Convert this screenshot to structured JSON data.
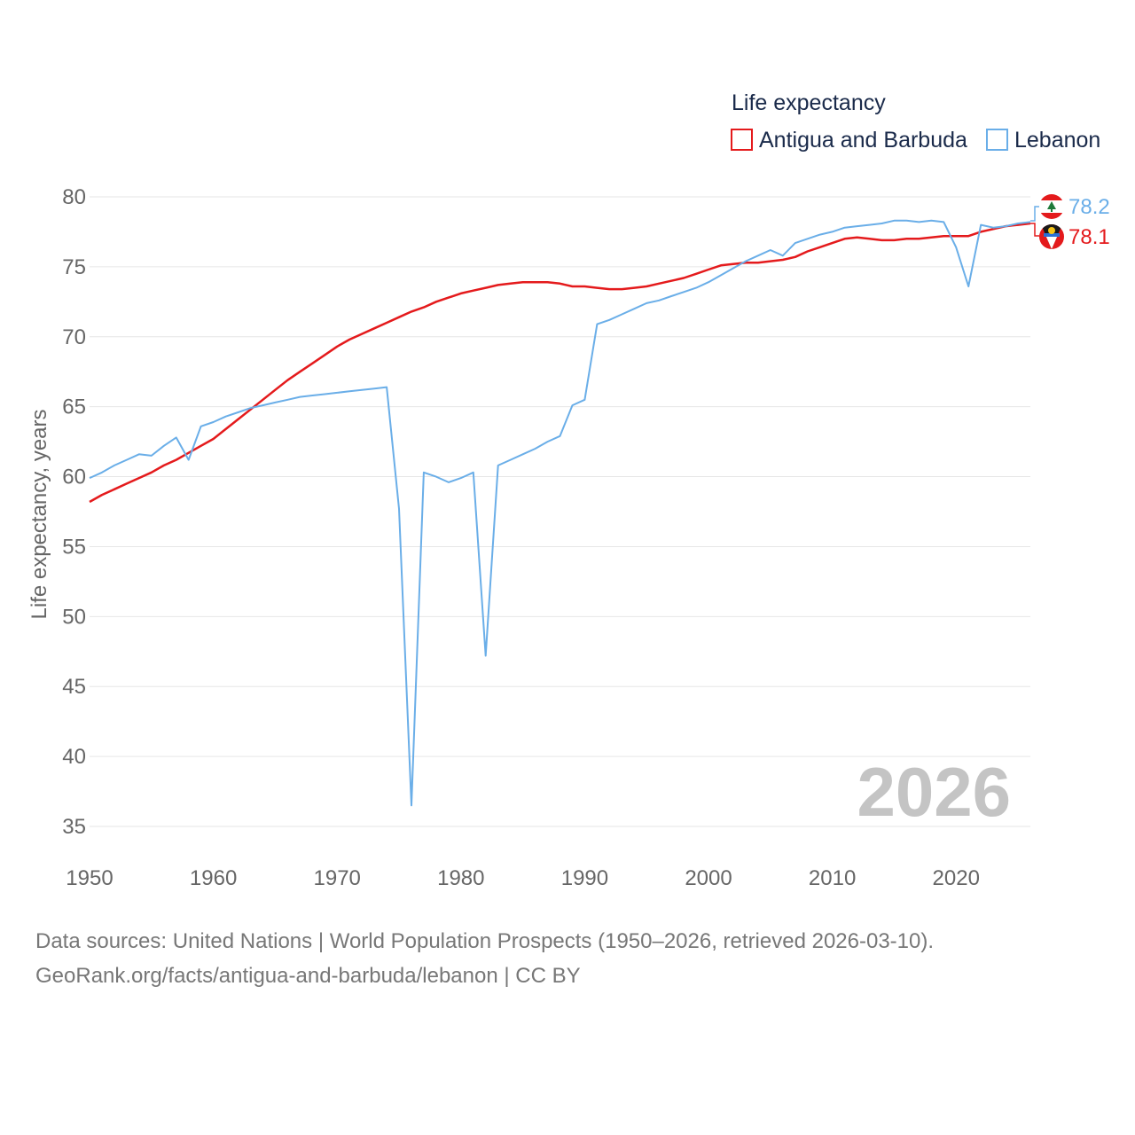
{
  "chart_data": {
    "type": "line",
    "legend_title": "Life expectancy",
    "ylabel": "Life expectancy, years",
    "xlabel": "",
    "xlim": [
      1950,
      2026
    ],
    "ylim": [
      35,
      80
    ],
    "x_ticks": [
      1950,
      1960,
      1970,
      1980,
      1990,
      2000,
      2010,
      2020
    ],
    "y_ticks": [
      35,
      40,
      45,
      50,
      55,
      60,
      65,
      70,
      75,
      80
    ],
    "year_watermark": "2026",
    "x": [
      1950,
      1951,
      1952,
      1953,
      1954,
      1955,
      1956,
      1957,
      1958,
      1959,
      1960,
      1961,
      1962,
      1963,
      1964,
      1965,
      1966,
      1967,
      1968,
      1969,
      1970,
      1971,
      1972,
      1973,
      1974,
      1975,
      1976,
      1977,
      1978,
      1979,
      1980,
      1981,
      1982,
      1983,
      1984,
      1985,
      1986,
      1987,
      1988,
      1989,
      1990,
      1991,
      1992,
      1993,
      1994,
      1995,
      1996,
      1997,
      1998,
      1999,
      2000,
      2001,
      2002,
      2003,
      2004,
      2005,
      2006,
      2007,
      2008,
      2009,
      2010,
      2011,
      2012,
      2013,
      2014,
      2015,
      2016,
      2017,
      2018,
      2019,
      2020,
      2021,
      2022,
      2023,
      2024,
      2025,
      2026
    ],
    "series": [
      {
        "name": "Antigua and Barbuda",
        "color": "#e41a1c",
        "end_label": "78.1",
        "values": [
          58.2,
          58.7,
          59.1,
          59.5,
          59.9,
          60.3,
          60.8,
          61.2,
          61.7,
          62.2,
          62.7,
          63.4,
          64.1,
          64.8,
          65.5,
          66.2,
          66.9,
          67.5,
          68.1,
          68.7,
          69.3,
          69.8,
          70.2,
          70.6,
          71.0,
          71.4,
          71.8,
          72.1,
          72.5,
          72.8,
          73.1,
          73.3,
          73.5,
          73.7,
          73.8,
          73.9,
          73.9,
          73.9,
          73.8,
          73.6,
          73.6,
          73.5,
          73.4,
          73.4,
          73.5,
          73.6,
          73.8,
          74.0,
          74.2,
          74.5,
          74.8,
          75.1,
          75.2,
          75.3,
          75.3,
          75.4,
          75.5,
          75.7,
          76.1,
          76.4,
          76.7,
          77.0,
          77.1,
          77.0,
          76.9,
          76.9,
          77.0,
          77.0,
          77.1,
          77.2,
          77.2,
          77.2,
          77.5,
          77.7,
          77.9,
          78.0,
          78.1
        ]
      },
      {
        "name": "Lebanon",
        "color": "#6aaee8",
        "end_label": "78.2",
        "values": [
          59.9,
          60.3,
          60.8,
          61.2,
          61.6,
          61.5,
          62.2,
          62.8,
          61.2,
          63.6,
          63.9,
          64.3,
          64.6,
          64.9,
          65.1,
          65.3,
          65.5,
          65.7,
          65.8,
          65.9,
          66.0,
          66.1,
          66.2,
          66.3,
          66.4,
          57.7,
          36.5,
          60.3,
          60.0,
          59.6,
          59.9,
          60.3,
          47.2,
          60.8,
          61.2,
          61.6,
          62.0,
          62.5,
          62.9,
          65.1,
          65.5,
          70.9,
          71.2,
          71.6,
          72.0,
          72.4,
          72.6,
          72.9,
          73.2,
          73.5,
          73.9,
          74.4,
          74.9,
          75.4,
          75.8,
          76.2,
          75.8,
          76.7,
          77.0,
          77.3,
          77.5,
          77.8,
          77.9,
          78.0,
          78.1,
          78.3,
          78.3,
          78.2,
          78.3,
          78.2,
          76.4,
          73.6,
          78.0,
          77.8,
          77.9,
          78.1,
          78.2
        ]
      }
    ]
  },
  "footer": {
    "line1": "Data sources: United Nations | World Population Prospects (1950–2026, retrieved 2026-03-10).",
    "line2": "GeoRank.org/facts/antigua-and-barbuda/lebanon | CC BY"
  }
}
